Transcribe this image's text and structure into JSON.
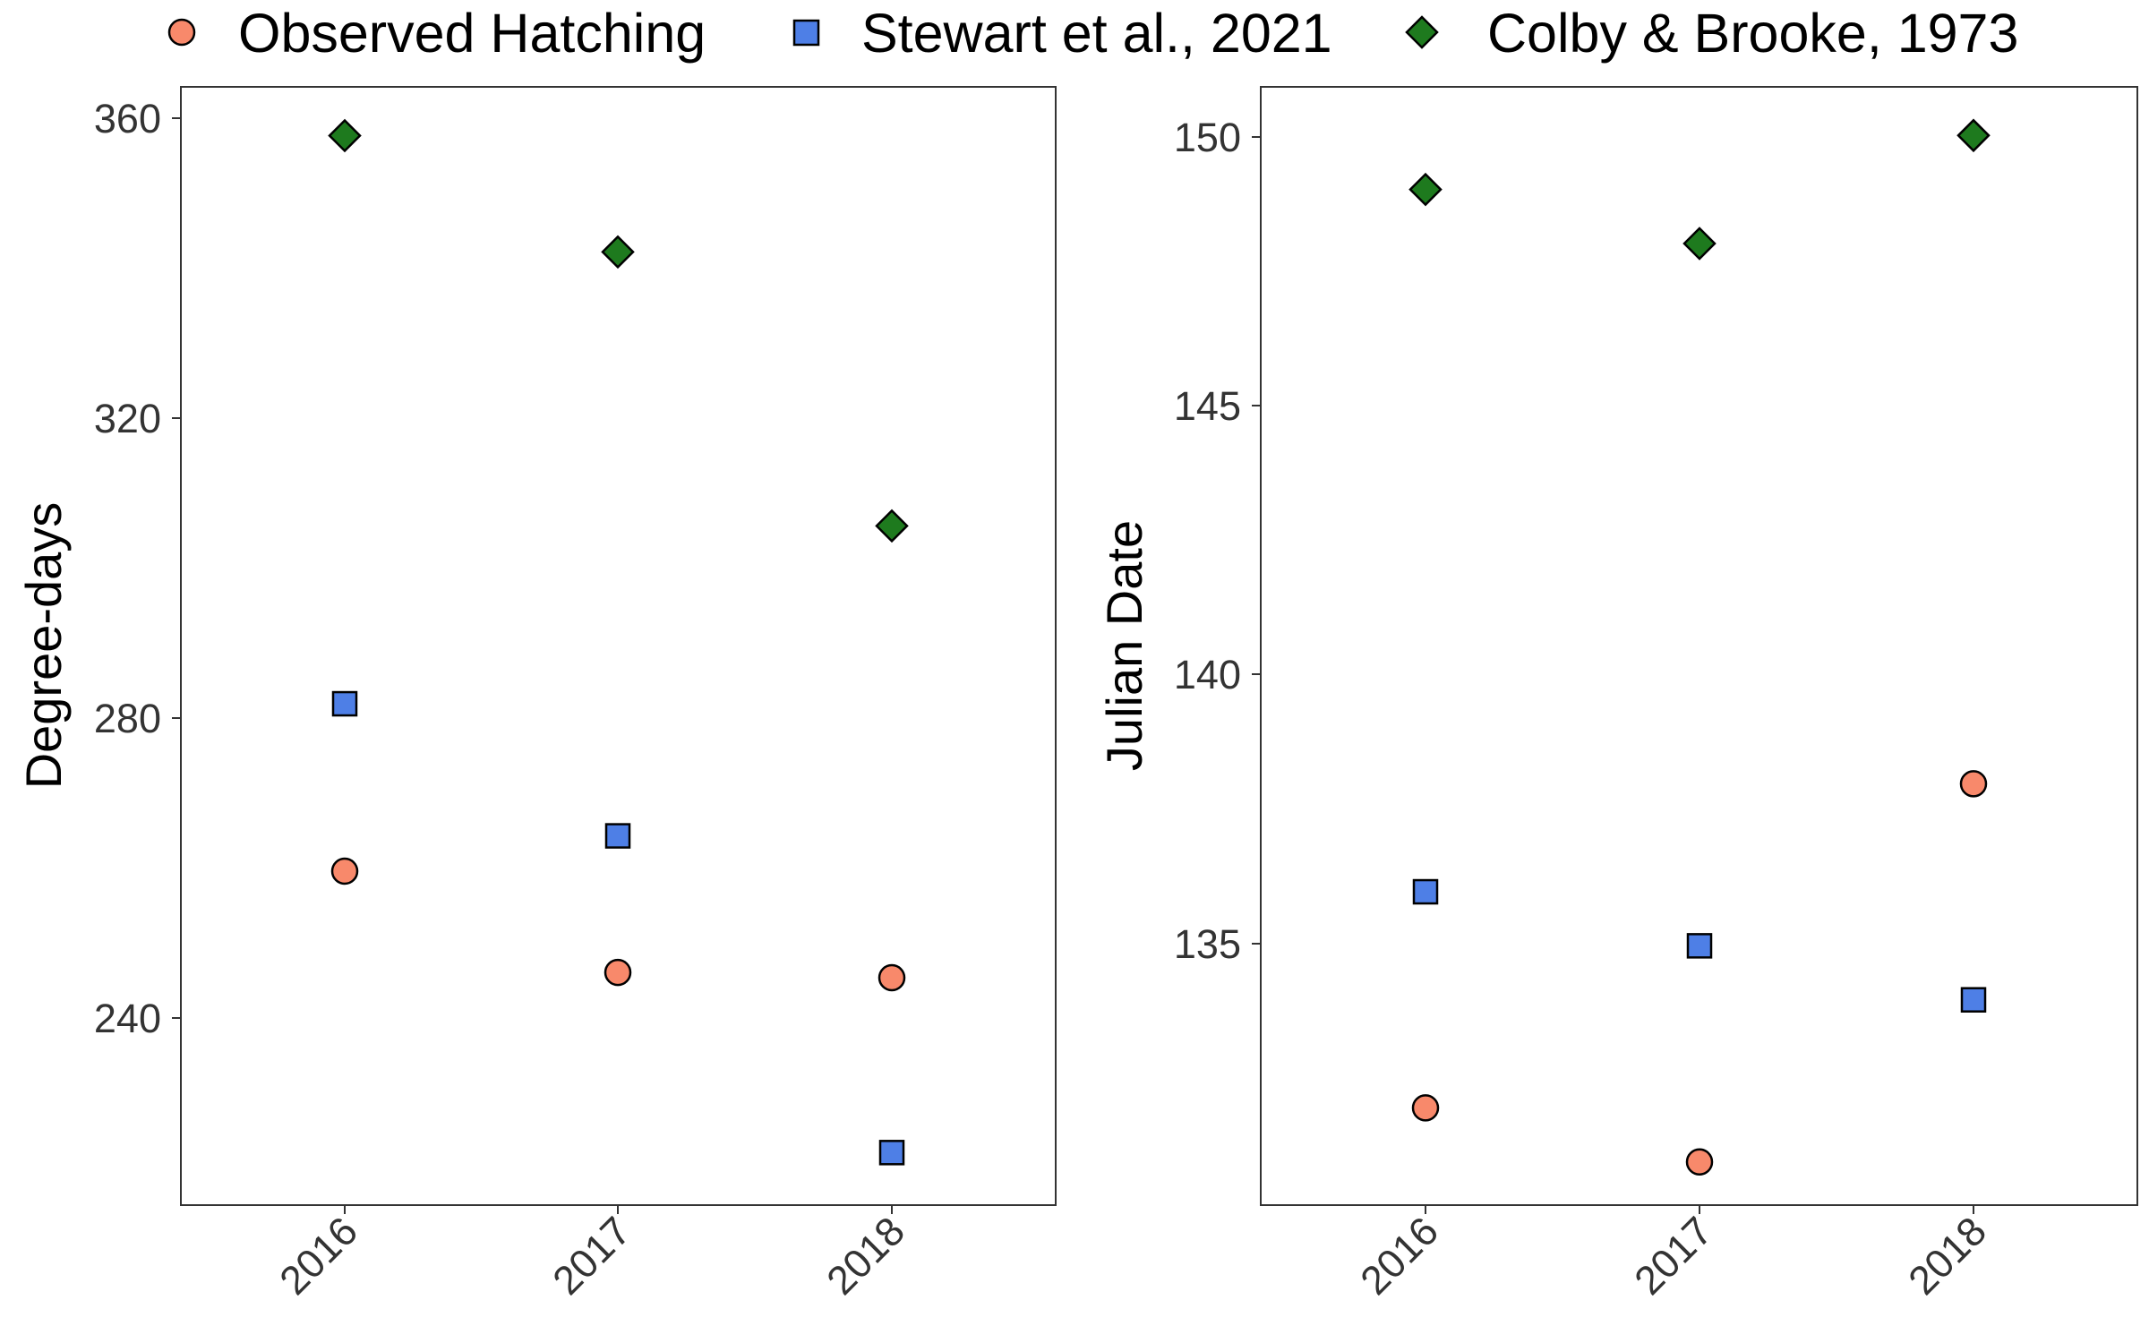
{
  "legend": {
    "items": [
      {
        "label": "Observed Hatching",
        "shape": "circle",
        "color": "#F8896B"
      },
      {
        "label": "Stewart et al., 2021",
        "shape": "square",
        "color": "#4E7FE6"
      },
      {
        "label": "Colby & Brooke, 1973",
        "shape": "diamond",
        "color": "#1E7A1E"
      }
    ]
  },
  "chart_data": [
    {
      "type": "scatter",
      "title": "",
      "xlabel": "",
      "ylabel": "Degree-days",
      "categories": [
        "2016",
        "2017",
        "2018"
      ],
      "yticks": [
        240,
        280,
        320,
        360
      ],
      "ylim": [
        215,
        364
      ],
      "grid": false,
      "legend_position": "top",
      "series": [
        {
          "name": "Observed Hatching",
          "values": [
            259.5,
            246,
            245.3
          ]
        },
        {
          "name": "Stewart et al., 2021",
          "values": [
            281.8,
            264.2,
            222
          ]
        },
        {
          "name": "Colby & Brooke, 1973",
          "values": [
            357.5,
            342,
            305.5
          ]
        }
      ]
    },
    {
      "type": "scatter",
      "title": "",
      "xlabel": "",
      "ylabel": "Julian Date",
      "categories": [
        "2016",
        "2017",
        "2018"
      ],
      "yticks": [
        135,
        140,
        145,
        150
      ],
      "ylim": [
        130.2,
        150.9
      ],
      "grid": false,
      "legend_position": "top",
      "series": [
        {
          "name": "Observed Hatching",
          "values": [
            132,
            131,
            138
          ]
        },
        {
          "name": "Stewart et al., 2021",
          "values": [
            136,
            135,
            134
          ]
        },
        {
          "name": "Colby & Brooke, 1973",
          "values": [
            149,
            148,
            150
          ]
        }
      ]
    }
  ]
}
